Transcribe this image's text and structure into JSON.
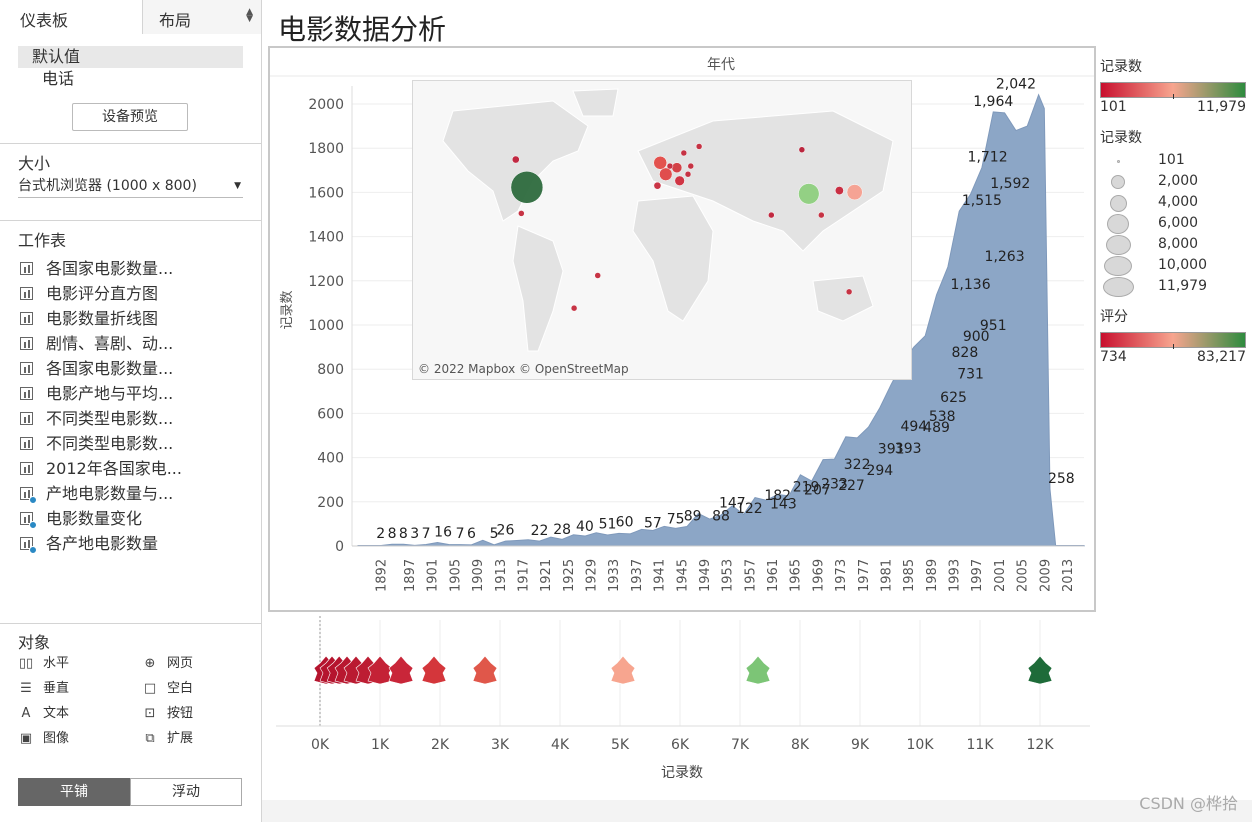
{
  "left": {
    "tabs": [
      {
        "label": "仪表板"
      },
      {
        "label": "布局"
      }
    ],
    "devices": [
      {
        "label": "默认值"
      },
      {
        "label": "电话"
      }
    ],
    "device_preview": "设备预览",
    "size_title": "大小",
    "size_value": "台式机浏览器 (1000 x 800)",
    "worksheets_title": "工作表",
    "worksheets": [
      {
        "label": "各国家电影数量..."
      },
      {
        "label": "电影评分直方图"
      },
      {
        "label": "电影数量折线图"
      },
      {
        "label": "剧情、喜剧、动..."
      },
      {
        "label": "各国家电影数量..."
      },
      {
        "label": "电影产地与平均..."
      },
      {
        "label": "不同类型电影数..."
      },
      {
        "label": "不同类型电影数..."
      },
      {
        "label": "2012年各国家电..."
      },
      {
        "label": "产地电影数量与..."
      },
      {
        "label": "电影数量变化"
      },
      {
        "label": "各产地电影数量"
      }
    ],
    "objects_title": "对象",
    "objects": [
      {
        "label": "水平",
        "icon": "horizontal-icon"
      },
      {
        "label": "网页",
        "icon": "globe-icon"
      },
      {
        "label": "垂直",
        "icon": "vertical-icon"
      },
      {
        "label": "空白",
        "icon": "blank-icon"
      },
      {
        "label": "文本",
        "icon": "text-icon"
      },
      {
        "label": "按钮",
        "icon": "button-icon"
      },
      {
        "label": "图像",
        "icon": "image-icon"
      },
      {
        "label": "扩展",
        "icon": "extension-icon"
      }
    ],
    "mode": [
      {
        "label": "平铺"
      },
      {
        "label": "浮动"
      }
    ]
  },
  "title": "电影数据分析",
  "map": {
    "attribution": "© 2022 Mapbox © OpenStreetMap"
  },
  "legends": {
    "count_title": "记录数",
    "count_min": "101",
    "count_max": "11,979",
    "size_title": "记录数",
    "size_items": [
      "101",
      "2,000",
      "4,000",
      "6,000",
      "8,000",
      "10,000",
      "11,979"
    ],
    "score_title": "评分",
    "score_min": "734",
    "score_max": "83,217",
    "colors": {
      "low": "#c8102e",
      "mid": "#f7a58f",
      "high": "#2e8b3e"
    }
  },
  "watermark": "CSDN @桦拾",
  "chart_data": [
    {
      "type": "area",
      "title": "年代",
      "ylabel": "记录数",
      "ylim": [
        0,
        2100
      ],
      "yticks": [
        0,
        200,
        400,
        600,
        800,
        1000,
        1200,
        1400,
        1600,
        1800,
        2000
      ],
      "xticks": [
        "1892",
        "1897",
        "1901",
        "1905",
        "1909",
        "1913",
        "1917",
        "1921",
        "1925",
        "1929",
        "1933",
        "1937",
        "1941",
        "1945",
        "1949",
        "1953",
        "1957",
        "1961",
        "1965",
        "1969",
        "1973",
        "1977",
        "1981",
        "1985",
        "1989",
        "1993",
        "1997",
        "2001",
        "2005",
        "2009",
        "2013"
      ],
      "series": [
        {
          "color": "#8ca6c6",
          "x": [
            1888,
            1892,
            1894,
            1896,
            1898,
            1900,
            1902,
            1904,
            1906,
            1908,
            1910,
            1912,
            1914,
            1916,
            1918,
            1920,
            1922,
            1924,
            1926,
            1928,
            1930,
            1932,
            1934,
            1936,
            1938,
            1940,
            1942,
            1944,
            1946,
            1948,
            1950,
            1952,
            1954,
            1956,
            1958,
            1960,
            1962,
            1964,
            1966,
            1968,
            1970,
            1972,
            1974,
            1976,
            1978,
            1980,
            1982,
            1984,
            1986,
            1988,
            1990,
            1992,
            1994,
            1996,
            1998,
            2000,
            2002,
            2004,
            2006,
            2008,
            2009,
            2010,
            2011,
            2012,
            2013,
            2014,
            2015,
            2016
          ],
          "y": [
            2,
            2,
            8,
            8,
            3,
            7,
            16,
            7,
            6,
            5,
            26,
            5,
            22,
            25,
            28,
            22,
            40,
            30,
            51,
            45,
            60,
            50,
            57,
            55,
            75,
            70,
            89,
            80,
            88,
            147,
            122,
            140,
            182,
            143,
            219,
            207,
            233,
            227,
            322,
            294,
            391,
            393,
            494,
            489,
            538,
            625,
            731,
            828,
            900,
            951,
            1136,
            1263,
            1515,
            1592,
            1712,
            1964,
            1960,
            1880,
            1900,
            2042,
            1980,
            258,
            2,
            2,
            2,
            2,
            2,
            2
          ]
        }
      ],
      "labels": [
        {
          "x": 1892,
          "v": "2"
        },
        {
          "x": 1894,
          "v": "8"
        },
        {
          "x": 1896,
          "v": "8"
        },
        {
          "x": 1898,
          "v": "3"
        },
        {
          "x": 1900,
          "v": "7"
        },
        {
          "x": 1903,
          "v": "16"
        },
        {
          "x": 1906,
          "v": "7"
        },
        {
          "x": 1908,
          "v": "6"
        },
        {
          "x": 1912,
          "v": "5"
        },
        {
          "x": 1914,
          "v": "26"
        },
        {
          "x": 1920,
          "v": "22"
        },
        {
          "x": 1924,
          "v": "28"
        },
        {
          "x": 1928,
          "v": "40"
        },
        {
          "x": 1932,
          "v": "51"
        },
        {
          "x": 1935,
          "v": "60"
        },
        {
          "x": 1940,
          "v": "57"
        },
        {
          "x": 1944,
          "v": "75"
        },
        {
          "x": 1947,
          "v": "89"
        },
        {
          "x": 1952,
          "v": "88"
        },
        {
          "x": 1954,
          "v": "147"
        },
        {
          "x": 1957,
          "v": "122"
        },
        {
          "x": 1962,
          "v": "182"
        },
        {
          "x": 1963,
          "v": "143"
        },
        {
          "x": 1967,
          "v": "219"
        },
        {
          "x": 1969,
          "v": "207"
        },
        {
          "x": 1972,
          "v": "233"
        },
        {
          "x": 1975,
          "v": "227"
        },
        {
          "x": 1976,
          "v": "322"
        },
        {
          "x": 1980,
          "v": "294"
        },
        {
          "x": 1982,
          "v": "391"
        },
        {
          "x": 1985,
          "v": "393"
        },
        {
          "x": 1986,
          "v": "494"
        },
        {
          "x": 1990,
          "v": "489"
        },
        {
          "x": 1991,
          "v": "538"
        },
        {
          "x": 1993,
          "v": "625"
        },
        {
          "x": 1996,
          "v": "731"
        },
        {
          "x": 1995,
          "v": "828"
        },
        {
          "x": 1997,
          "v": "900"
        },
        {
          "x": 2000,
          "v": "951"
        },
        {
          "x": 1996,
          "v": "1,136"
        },
        {
          "x": 2002,
          "v": "1,263"
        },
        {
          "x": 1998,
          "v": "1,515"
        },
        {
          "x": 2003,
          "v": "1,592"
        },
        {
          "x": 1999,
          "v": "1,712"
        },
        {
          "x": 2000,
          "v": "1,964"
        },
        {
          "x": 2004,
          "v": "2,042"
        },
        {
          "x": 2012,
          "v": "258"
        }
      ]
    },
    {
      "type": "scatter",
      "xlabel": "记录数",
      "xticks": [
        "0K",
        "1K",
        "2K",
        "3K",
        "4K",
        "5K",
        "6K",
        "7K",
        "8K",
        "9K",
        "10K",
        "11K",
        "12K"
      ],
      "xlim": [
        0,
        12800
      ],
      "points": [
        {
          "x": 101,
          "color": "#b5142e"
        },
        {
          "x": 200,
          "color": "#b5142e"
        },
        {
          "x": 320,
          "color": "#b5142e"
        },
        {
          "x": 450,
          "color": "#b8172f"
        },
        {
          "x": 600,
          "color": "#ba1a31"
        },
        {
          "x": 800,
          "color": "#bd1d33"
        },
        {
          "x": 1000,
          "color": "#c42236"
        },
        {
          "x": 1350,
          "color": "#c92639"
        },
        {
          "x": 1900,
          "color": "#d4363b"
        },
        {
          "x": 2750,
          "color": "#e0574a"
        },
        {
          "x": 5050,
          "color": "#f7a58f"
        },
        {
          "x": 7300,
          "color": "#7cc576"
        },
        {
          "x": 12000,
          "color": "#1e6b39"
        }
      ]
    },
    {
      "type": "scatter",
      "title": "map bubbles",
      "points": [
        {
          "lon": -98,
          "lat": 39,
          "value": 11979,
          "color": "#2e6b3e"
        },
        {
          "lon": 105,
          "lat": 35,
          "value": 5000,
          "color": "#8fd07f"
        },
        {
          "lon": 138,
          "lat": 36,
          "value": 2800,
          "color": "#f7a090"
        },
        {
          "lon": 2,
          "lat": 47,
          "value": 1900,
          "color": "#e04545"
        },
        {
          "lon": 10,
          "lat": 51,
          "value": 1200,
          "color": "#d33a3f"
        },
        {
          "lon": -2,
          "lat": 54,
          "value": 2000,
          "color": "#e34b47"
        },
        {
          "lon": 12,
          "lat": 43,
          "value": 1100,
          "color": "#cf2c3c"
        },
        {
          "lon": -4,
          "lat": 40,
          "value": 600,
          "color": "#c82b3d"
        },
        {
          "lon": 127,
          "lat": 37,
          "value": 800,
          "color": "#c8263b"
        },
        {
          "lon": -106,
          "lat": 56,
          "value": 600,
          "color": "#c0203a"
        },
        {
          "lon": 100,
          "lat": 62,
          "value": 300,
          "color": "#b81c36"
        },
        {
          "lon": 78,
          "lat": 22,
          "value": 300,
          "color": "#c02038"
        },
        {
          "lon": 114,
          "lat": 22,
          "value": 300,
          "color": "#c52a3c"
        },
        {
          "lon": 134,
          "lat": -25,
          "value": 250,
          "color": "#c52a3c"
        },
        {
          "lon": -64,
          "lat": -35,
          "value": 200,
          "color": "#c52a3c"
        },
        {
          "lon": -47,
          "lat": -15,
          "value": 101,
          "color": "#c52a3c"
        },
        {
          "lon": -102,
          "lat": 23,
          "value": 200,
          "color": "#c52a3c"
        },
        {
          "lon": 15,
          "lat": 60,
          "value": 250,
          "color": "#c52a3c"
        },
        {
          "lon": 26,
          "lat": 64,
          "value": 150,
          "color": "#c52a3c"
        },
        {
          "lon": 20,
          "lat": 52,
          "value": 200,
          "color": "#c52a3c"
        },
        {
          "lon": 5,
          "lat": 52,
          "value": 300,
          "color": "#c52a3c"
        },
        {
          "lon": 18,
          "lat": 47,
          "value": 200,
          "color": "#c52a3c"
        }
      ]
    }
  ]
}
